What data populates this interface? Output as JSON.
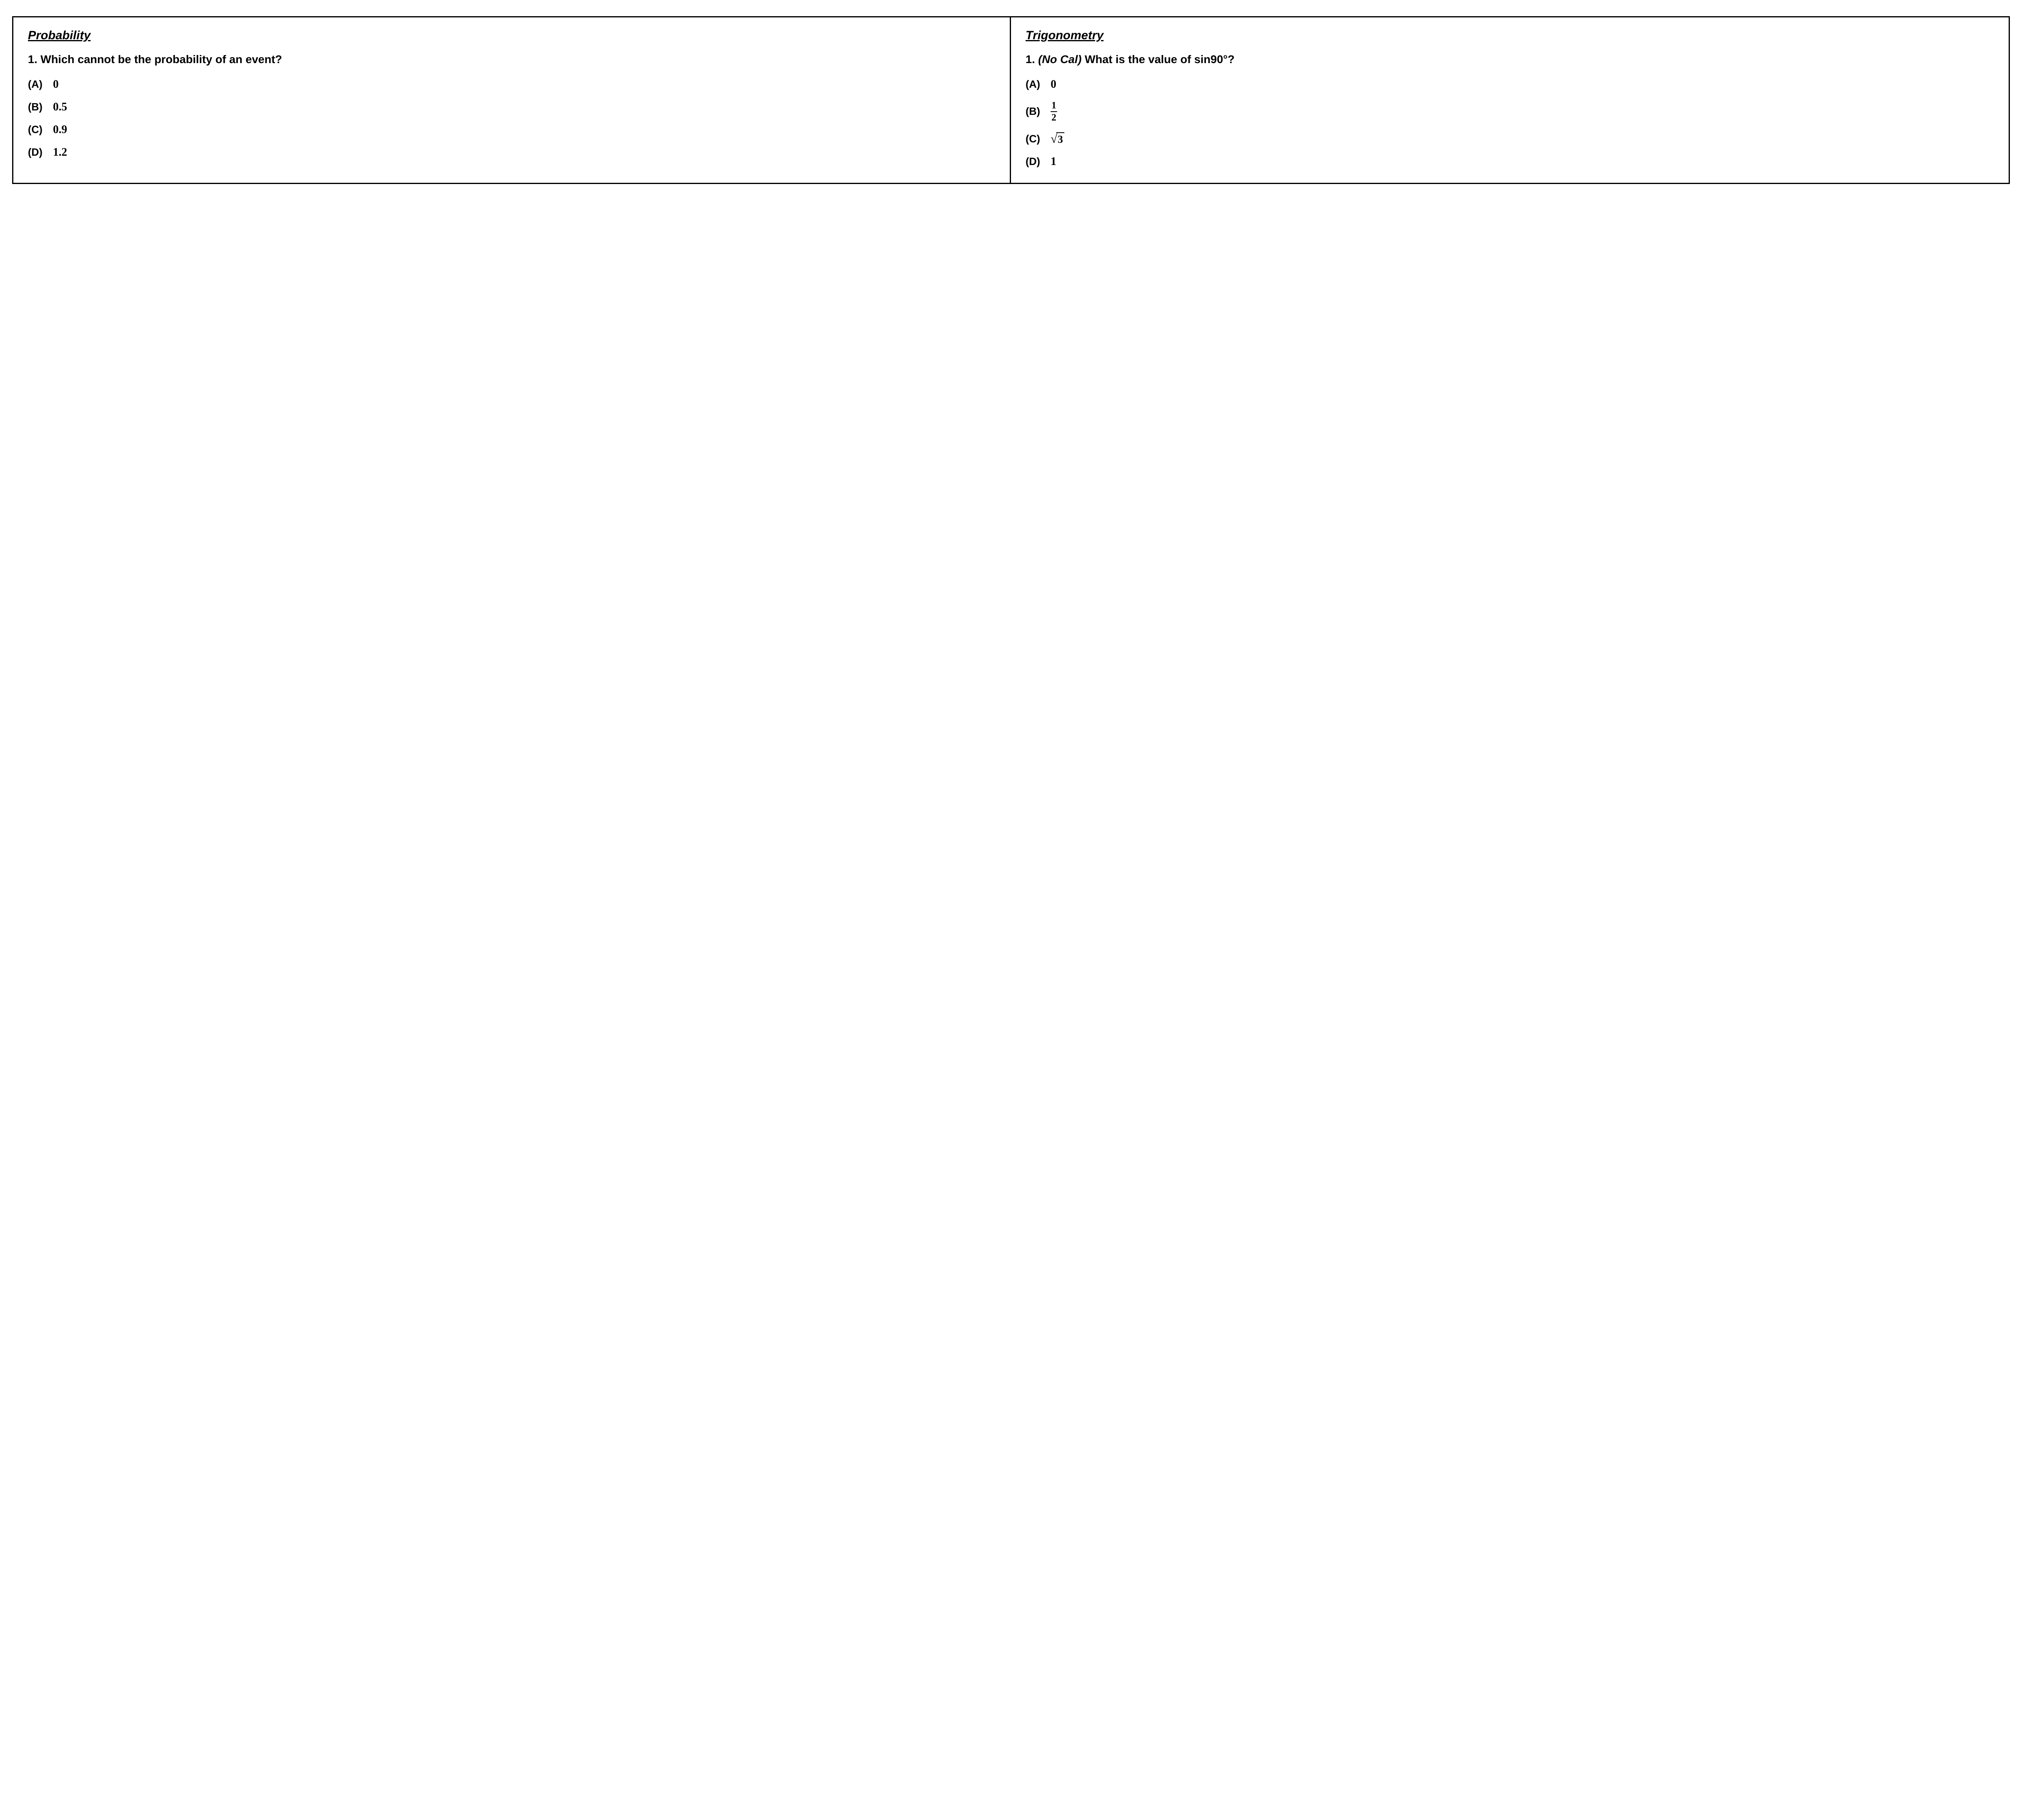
{
  "left": {
    "title": "Probability",
    "question_number": "1.",
    "question_text": "Which cannot be the probability of an event?",
    "options": {
      "a_letter": "(A)",
      "a_value": "0",
      "b_letter": "(B)",
      "b_value": "0.5",
      "c_letter": "(C)",
      "c_value": "0.9",
      "d_letter": "(D)",
      "d_value": "1.2"
    }
  },
  "right": {
    "title": "Trigonometry",
    "question_number": "1.",
    "question_note": "(No Cal)",
    "question_text": "What is the value of sin90°?",
    "options": {
      "a_letter": "(A)",
      "a_value": "0",
      "b_letter": "(B)",
      "b_frac_num": "1",
      "b_frac_den": "2",
      "c_letter": "(C)",
      "c_sqrt_radicand": "3",
      "d_letter": "(D)",
      "d_value": "1"
    }
  }
}
